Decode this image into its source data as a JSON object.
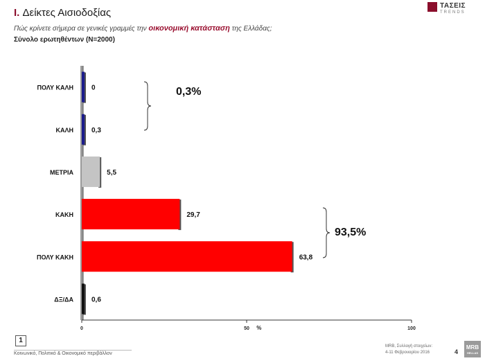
{
  "header": {
    "title_num": "I.",
    "title_text": "Δείκτες Αισιοδοξίας",
    "question_before": "Πώς κρίνετε σήμερα σε γενικές γραμμές την ",
    "question_highlight": "οικονομική κατάσταση",
    "question_after": " της Ελλάδας;",
    "sample": "Σύνολο ερωτηθέντων (N=2000)"
  },
  "logo_top": {
    "name": "ΤΑΣΕΙΣ",
    "sub": "TRENDS"
  },
  "chart_data": {
    "type": "bar",
    "orientation": "horizontal",
    "categories": [
      "ΠΟΛΥ ΚΑΛΗ",
      "ΚΑΛΗ",
      "ΜΕΤΡΙΑ",
      "ΚΑΚΗ",
      "ΠΟΛΥ ΚΑΚΗ",
      "ΔΞ/ΔΑ"
    ],
    "values": [
      0,
      0.3,
      5.5,
      29.7,
      63.8,
      0.6
    ],
    "value_labels": [
      "0",
      "0,3",
      "5,5",
      "29,7",
      "63,8",
      "0,6"
    ],
    "colors": [
      "#1c1c8c",
      "#1c1c8c",
      "#c4c4c4",
      "#ff0000",
      "#ff0000",
      "#111111"
    ],
    "xlim": [
      0,
      100
    ],
    "xticks": [
      "0",
      "50",
      "100"
    ],
    "xlabel": "%",
    "groups": [
      {
        "label": "0,3%"
      },
      {
        "label": "93,5%"
      }
    ]
  },
  "footer": {
    "page_box": "1",
    "left_text": "Κοινωνικό, Πολιτικό & Οικονομικό περιβάλλον",
    "right_line1": "MRB, Συλλογή στοιχείων:",
    "right_line2": "4-11 Φεβρουαρίου 2016",
    "page_num": "4",
    "logo_br": "MRB",
    "logo_br_small": "HELLAS"
  }
}
